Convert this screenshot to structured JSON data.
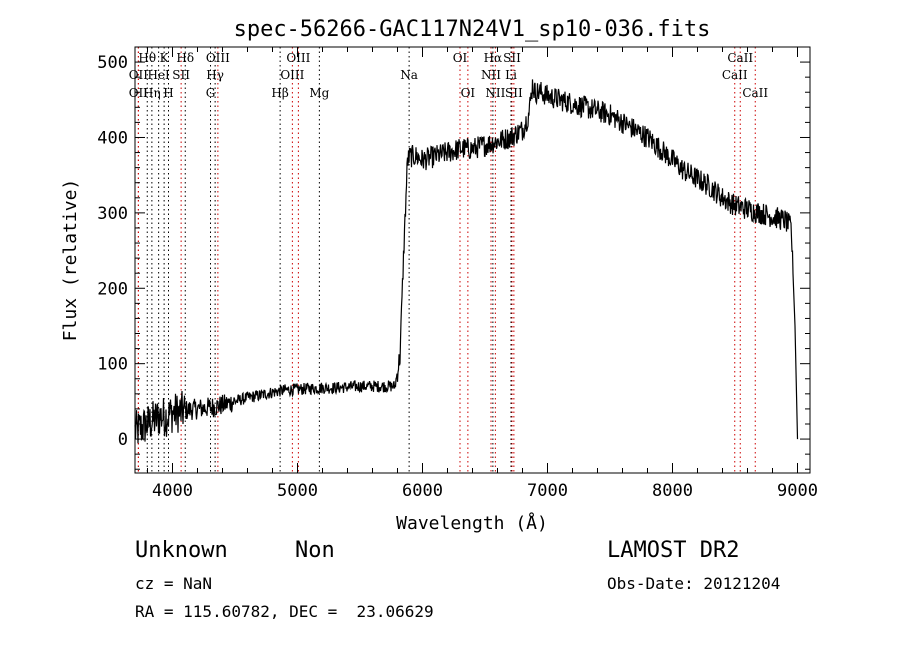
{
  "chart_data": {
    "type": "line",
    "title": "spec-56266-GAC117N24V1_sp10-036.fits",
    "xlabel": "Wavelength (Å)",
    "ylabel": "Flux (relative)",
    "xlim": [
      3700,
      9100
    ],
    "ylim": [
      -45,
      520
    ],
    "x_ticks": [
      "4000",
      "5000",
      "6000",
      "7000",
      "8000",
      "9000"
    ],
    "y_ticks": [
      "0",
      "100",
      "200",
      "300",
      "400",
      "500"
    ],
    "x_tick_values": [
      4000,
      5000,
      6000,
      7000,
      8000,
      9000
    ],
    "y_tick_values": [
      0,
      100,
      200,
      300,
      400,
      500
    ],
    "grid": false,
    "legend": "none",
    "series": [
      {
        "color": "#000000",
        "x": [
          3700,
          3750,
          3800,
          3850,
          3900,
          3950,
          4000,
          4050,
          4100,
          4200,
          4300,
          4400,
          4500,
          4600,
          4700,
          4800,
          4900,
          5000,
          5100,
          5200,
          5300,
          5400,
          5500,
          5600,
          5700,
          5780,
          5820,
          5850,
          5880,
          5900,
          5950,
          6000,
          6100,
          6200,
          6300,
          6400,
          6500,
          6600,
          6700,
          6800,
          6850,
          6880,
          6900,
          6950,
          7000,
          7100,
          7200,
          7300,
          7400,
          7500,
          7600,
          7700,
          7800,
          7900,
          8000,
          8100,
          8200,
          8300,
          8400,
          8500,
          8600,
          8700,
          8800,
          8900,
          8950,
          8980,
          9000
        ],
        "y": [
          10,
          15,
          20,
          25,
          30,
          30,
          35,
          35,
          38,
          40,
          42,
          45,
          50,
          55,
          58,
          62,
          65,
          66,
          67,
          68,
          68,
          69,
          70,
          70,
          70,
          70,
          110,
          250,
          370,
          375,
          375,
          370,
          375,
          380,
          385,
          385,
          390,
          395,
          400,
          410,
          430,
          470,
          460,
          460,
          455,
          450,
          445,
          440,
          435,
          430,
          420,
          410,
          400,
          385,
          370,
          355,
          345,
          335,
          320,
          310,
          305,
          300,
          295,
          290,
          280,
          150,
          0
        ]
      }
    ],
    "line_markers": [
      {
        "wavelength": 3798,
        "color": "#000000",
        "label": "Hθ",
        "row": 0
      },
      {
        "wavelength": 3727,
        "color": "#cc0000",
        "label": "OII",
        "row": 1
      },
      {
        "wavelength": 3727,
        "color": "#cc0000",
        "label": "OII",
        "row": 2
      },
      {
        "wavelength": 3835,
        "color": "#000000",
        "label": "Hη",
        "row": 2
      },
      {
        "wavelength": 3889,
        "color": "#000000",
        "label": "HeI",
        "row": 1
      },
      {
        "wavelength": 3933,
        "color": "#000000",
        "label": "K",
        "row": 0
      },
      {
        "wavelength": 3968,
        "color": "#000000",
        "label": "H",
        "row": 2
      },
      {
        "wavelength": 4069,
        "color": "#cc0000",
        "label": "SII",
        "row": 1
      },
      {
        "wavelength": 4102,
        "color": "#000000",
        "label": "Hδ",
        "row": 0
      },
      {
        "wavelength": 4304,
        "color": "#000000",
        "label": "G",
        "row": 2
      },
      {
        "wavelength": 4341,
        "color": "#000000",
        "label": "Hγ",
        "row": 1
      },
      {
        "wavelength": 4363,
        "color": "#cc0000",
        "label": "OIII",
        "row": 0
      },
      {
        "wavelength": 4861,
        "color": "#000000",
        "label": "Hβ",
        "row": 2
      },
      {
        "wavelength": 4959,
        "color": "#cc0000",
        "label": "OIII",
        "row": 1
      },
      {
        "wavelength": 5007,
        "color": "#cc0000",
        "label": "OIII",
        "row": 0
      },
      {
        "wavelength": 5175,
        "color": "#000000",
        "label": "Mg",
        "row": 2
      },
      {
        "wavelength": 5893,
        "color": "#000000",
        "label": "Na",
        "row": 1
      },
      {
        "wavelength": 6300,
        "color": "#cc0000",
        "label": "OI",
        "row": 0
      },
      {
        "wavelength": 6363,
        "color": "#cc0000",
        "label": "OI",
        "row": 2
      },
      {
        "wavelength": 6548,
        "color": "#cc0000",
        "label": "NII",
        "row": 1
      },
      {
        "wavelength": 6563,
        "color": "#000000",
        "label": "Hα",
        "row": 0
      },
      {
        "wavelength": 6583,
        "color": "#cc0000",
        "label": "NII",
        "row": 2
      },
      {
        "wavelength": 6708,
        "color": "#000000",
        "label": "Li",
        "row": 1
      },
      {
        "wavelength": 6716,
        "color": "#cc0000",
        "label": "SII",
        "row": 0
      },
      {
        "wavelength": 6731,
        "color": "#cc0000",
        "label": "SII",
        "row": 2
      },
      {
        "wavelength": 8498,
        "color": "#cc0000",
        "label": "CaII",
        "row": 1
      },
      {
        "wavelength": 8542,
        "color": "#cc0000",
        "label": "CaII",
        "row": 0
      },
      {
        "wavelength": 8662,
        "color": "#cc0000",
        "label": "CaII",
        "row": 2
      }
    ]
  },
  "info": {
    "class_label": "Unknown",
    "subclass_label": "Non",
    "survey": "LAMOST DR2",
    "redshift": "cz = NaN",
    "obs_date": "Obs-Date: 20121204",
    "coords": "RA = 115.60782, DEC =  23.06629"
  }
}
